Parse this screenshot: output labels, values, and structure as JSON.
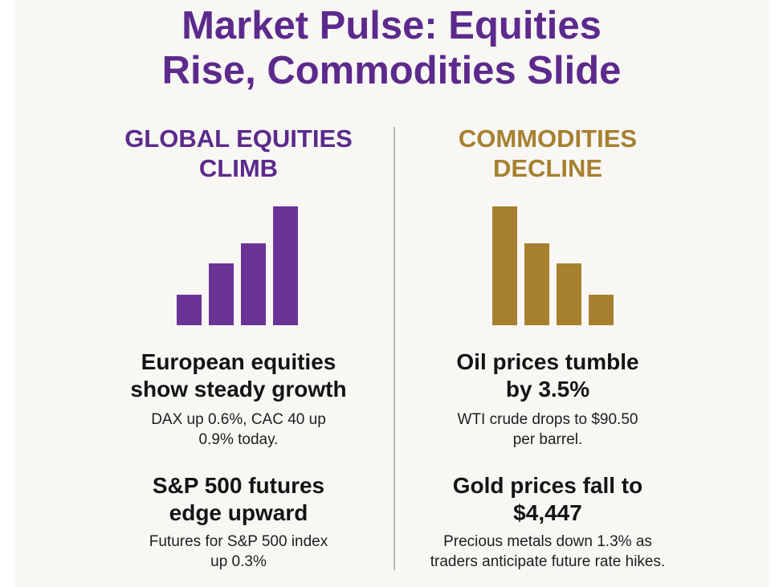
{
  "header": {
    "title_line1": "Market Pulse: Equities",
    "title_line2": "Rise, Commodities Slide"
  },
  "left": {
    "heading_line1": "GLOBAL EQUITIES",
    "heading_line2": "CLIMB",
    "color": "#5c2a8c",
    "bar_levels": [
      0.26,
      0.52,
      0.69,
      1.0
    ],
    "items": [
      {
        "head_line1": "European equities",
        "head_line2": "show steady growth",
        "body_line1": "DAX up 0.6%, CAC 40 up",
        "body_line2": "0.9% today."
      },
      {
        "head_line1": "S&P 500 futures",
        "head_line2": "edge upward",
        "body_line1": "Futures for S&P 500 index",
        "body_line2": "up 0.3%"
      }
    ]
  },
  "right": {
    "heading_line1": "COMMODITIES",
    "heading_line2": "DECLINE",
    "color": "#a6802f",
    "bar_levels": [
      1.0,
      0.69,
      0.52,
      0.26
    ],
    "items": [
      {
        "head_line1": "Oil prices tumble",
        "head_line2": "by 3.5%",
        "body_line1": "WTI crude drops to $90.50",
        "body_line2": "per barrel."
      },
      {
        "head_line1": "Gold prices fall to",
        "head_line2": "$4,447",
        "body_line1": "Precious metals down 1.3% as",
        "body_line2": "traders anticipate future rate hikes."
      }
    ]
  }
}
